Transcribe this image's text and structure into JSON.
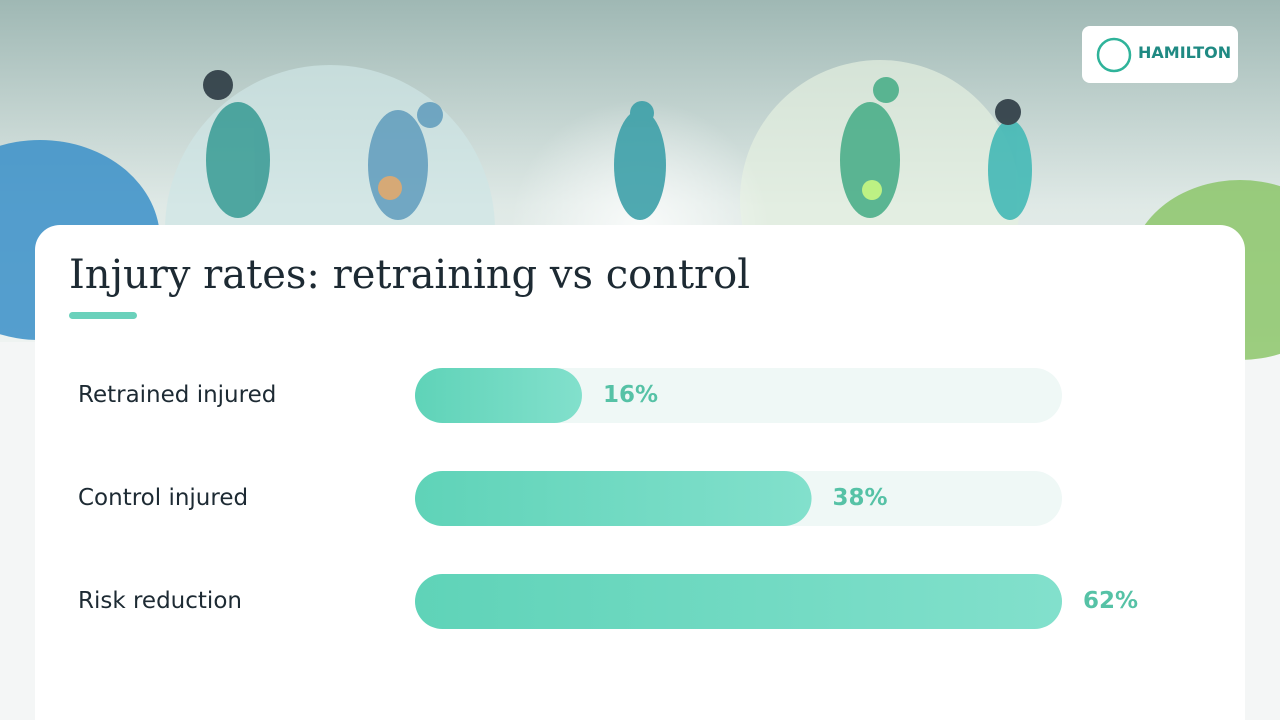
{
  "logo": "HAMILTON",
  "chart_data": {
    "type": "hbar",
    "title": "Injury rates: retraining vs control",
    "categories": [
      "Retrained injured",
      "Control injured",
      "Risk reduction"
    ],
    "values": [
      16,
      38,
      62
    ],
    "value_labels": [
      "16%",
      "38%",
      "62%"
    ],
    "color": "#5fd3b8",
    "xlim": [
      0,
      62
    ]
  }
}
